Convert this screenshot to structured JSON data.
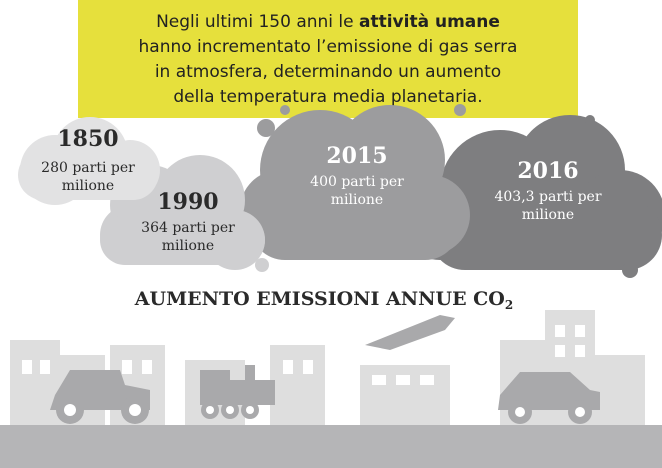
{
  "intro": {
    "lines": [
      {
        "before": "Negli ultimi 150 anni le ",
        "bold": "attività umane"
      },
      "hanno incrementato l’emissione di gas serra",
      "in atmosfera, determinando un aumento",
      "della temperatura media planetaria."
    ]
  },
  "clouds": [
    {
      "year": "1850",
      "lines": [
        "280 parti per",
        "milione"
      ]
    },
    {
      "year": "1990",
      "lines": [
        "364 parti per",
        "milione"
      ]
    },
    {
      "year": "2015",
      "lines": [
        "400 parti per",
        "milione"
      ]
    },
    {
      "year": "2016",
      "lines": [
        "403,3 parti per",
        "milione"
      ]
    }
  ],
  "title": {
    "text": "AUMENTO EMISSIONI ANNUE CO",
    "subscript": "2"
  }
}
